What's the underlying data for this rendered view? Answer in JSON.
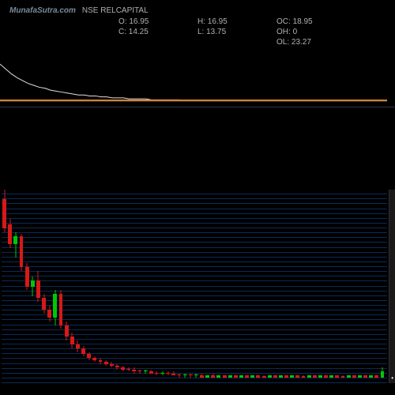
{
  "header": {
    "site": "MunafaSutra.com",
    "ticker": "NSE RELCAPITAL",
    "stats": {
      "o_label": "O:",
      "o_val": "16.95",
      "c_label": "C:",
      "c_val": "14.25",
      "h_label": "H:",
      "h_val": "16.95",
      "l_label": "L:",
      "l_val": "13.75",
      "oc_label": "OC:",
      "oc_val": "18.95",
      "oh_label": "OH:",
      "oh_val": "0",
      "ol_label": "OL:",
      "ol_val": "23.27"
    }
  },
  "colors": {
    "bg": "#000000",
    "grid": "#0a2a5a",
    "text": "#b0b0b0",
    "bull": "#00c800",
    "bear": "#d81818",
    "indicator_line": "#e0e0e0",
    "orange_line": "#ff8000",
    "blue_line": "#0060ff"
  },
  "indicator": {
    "points": [
      40,
      35,
      30,
      26,
      23,
      20,
      18,
      16,
      15,
      13,
      12,
      11,
      10,
      9,
      8,
      8,
      7,
      7,
      6,
      6,
      5,
      5,
      5,
      4,
      4,
      4,
      4,
      3,
      3,
      3,
      3,
      3,
      3,
      2,
      2,
      2,
      2,
      2,
      2,
      2,
      2,
      2,
      2,
      2,
      2,
      2,
      2,
      2,
      2,
      2,
      2,
      2,
      2,
      2,
      2,
      2,
      2,
      2,
      2,
      2,
      2,
      2,
      2,
      2,
      2,
      2,
      2,
      2,
      2,
      2
    ]
  },
  "chart": {
    "ylim": [
      0,
      100
    ],
    "grid_count": 40,
    "candles": [
      {
        "o": 95,
        "h": 100,
        "l": 78,
        "c": 80,
        "type": "bear"
      },
      {
        "o": 82,
        "h": 85,
        "l": 70,
        "c": 72,
        "type": "bear"
      },
      {
        "o": 72,
        "h": 78,
        "l": 65,
        "c": 76,
        "type": "bull"
      },
      {
        "o": 76,
        "h": 77,
        "l": 58,
        "c": 60,
        "type": "bear"
      },
      {
        "o": 60,
        "h": 62,
        "l": 48,
        "c": 50,
        "type": "bear"
      },
      {
        "o": 50,
        "h": 55,
        "l": 45,
        "c": 53,
        "type": "bull"
      },
      {
        "o": 53,
        "h": 58,
        "l": 42,
        "c": 44,
        "type": "bear"
      },
      {
        "o": 44,
        "h": 46,
        "l": 36,
        "c": 38,
        "type": "bear"
      },
      {
        "o": 38,
        "h": 40,
        "l": 32,
        "c": 34,
        "type": "bear"
      },
      {
        "o": 34,
        "h": 48,
        "l": 30,
        "c": 46,
        "type": "bull"
      },
      {
        "o": 46,
        "h": 48,
        "l": 28,
        "c": 30,
        "type": "bear"
      },
      {
        "o": 30,
        "h": 32,
        "l": 22,
        "c": 24,
        "type": "bear"
      },
      {
        "o": 24,
        "h": 26,
        "l": 18,
        "c": 20,
        "type": "bear"
      },
      {
        "o": 20,
        "h": 22,
        "l": 16,
        "c": 18,
        "type": "bear"
      },
      {
        "o": 18,
        "h": 19,
        "l": 14,
        "c": 15,
        "type": "bear"
      },
      {
        "o": 15,
        "h": 16,
        "l": 12,
        "c": 13,
        "type": "bear"
      },
      {
        "o": 13,
        "h": 14,
        "l": 11,
        "c": 12,
        "type": "bear"
      },
      {
        "o": 12,
        "h": 13,
        "l": 10,
        "c": 11,
        "type": "bear"
      },
      {
        "o": 11,
        "h": 12,
        "l": 9,
        "c": 10,
        "type": "bear"
      },
      {
        "o": 10,
        "h": 11,
        "l": 8,
        "c": 9,
        "type": "bear"
      },
      {
        "o": 9,
        "h": 10,
        "l": 7,
        "c": 8,
        "type": "bear"
      },
      {
        "o": 8,
        "h": 9,
        "l": 6,
        "c": 7,
        "type": "bear"
      },
      {
        "o": 7,
        "h": 8,
        "l": 6,
        "c": 7,
        "type": "bear"
      },
      {
        "o": 7,
        "h": 8,
        "l": 5,
        "c": 6,
        "type": "bear"
      },
      {
        "o": 6,
        "h": 7,
        "l": 5,
        "c": 6,
        "type": "bear"
      },
      {
        "o": 6,
        "h": 7,
        "l": 5,
        "c": 6,
        "type": "bull"
      },
      {
        "o": 6,
        "h": 7,
        "l": 5,
        "c": 5,
        "type": "bear"
      },
      {
        "o": 5,
        "h": 6,
        "l": 4,
        "c": 5,
        "type": "bear"
      },
      {
        "o": 5,
        "h": 6,
        "l": 4,
        "c": 5,
        "type": "bull"
      },
      {
        "o": 5,
        "h": 6,
        "l": 4,
        "c": 5,
        "type": "bear"
      },
      {
        "o": 5,
        "h": 6,
        "l": 4,
        "c": 4,
        "type": "bear"
      },
      {
        "o": 4,
        "h": 5,
        "l": 3,
        "c": 4,
        "type": "bear"
      },
      {
        "o": 4,
        "h": 5,
        "l": 3,
        "c": 4,
        "type": "bull"
      },
      {
        "o": 4,
        "h": 5,
        "l": 3,
        "c": 4,
        "type": "bear"
      },
      {
        "o": 4,
        "h": 5,
        "l": 3,
        "c": 4,
        "type": "bull"
      },
      {
        "o": 4,
        "h": 5,
        "l": 3,
        "c": 3,
        "type": "bear"
      },
      {
        "o": 3,
        "h": 4,
        "l": 3,
        "c": 4,
        "type": "bull"
      },
      {
        "o": 4,
        "h": 5,
        "l": 3,
        "c": 3,
        "type": "bear"
      },
      {
        "o": 3,
        "h": 4,
        "l": 3,
        "c": 4,
        "type": "bull"
      },
      {
        "o": 4,
        "h": 4,
        "l": 3,
        "c": 3,
        "type": "bear"
      },
      {
        "o": 3,
        "h": 4,
        "l": 3,
        "c": 4,
        "type": "bull"
      },
      {
        "o": 4,
        "h": 4,
        "l": 3,
        "c": 3,
        "type": "bear"
      },
      {
        "o": 3,
        "h": 4,
        "l": 3,
        "c": 4,
        "type": "bull"
      },
      {
        "o": 4,
        "h": 4,
        "l": 3,
        "c": 3,
        "type": "bear"
      },
      {
        "o": 3,
        "h": 4,
        "l": 3,
        "c": 4,
        "type": "bull"
      },
      {
        "o": 4,
        "h": 4,
        "l": 3,
        "c": 3,
        "type": "bear"
      },
      {
        "o": 3,
        "h": 4,
        "l": 3,
        "c": 3,
        "type": "bear"
      },
      {
        "o": 3,
        "h": 4,
        "l": 3,
        "c": 4,
        "type": "bull"
      },
      {
        "o": 4,
        "h": 4,
        "l": 3,
        "c": 3,
        "type": "bear"
      },
      {
        "o": 3,
        "h": 4,
        "l": 3,
        "c": 4,
        "type": "bull"
      },
      {
        "o": 4,
        "h": 4,
        "l": 3,
        "c": 3,
        "type": "bear"
      },
      {
        "o": 3,
        "h": 4,
        "l": 3,
        "c": 4,
        "type": "bull"
      },
      {
        "o": 4,
        "h": 4,
        "l": 3,
        "c": 3,
        "type": "bear"
      },
      {
        "o": 3,
        "h": 4,
        "l": 3,
        "c": 3,
        "type": "bear"
      },
      {
        "o": 3,
        "h": 4,
        "l": 3,
        "c": 4,
        "type": "bull"
      },
      {
        "o": 4,
        "h": 4,
        "l": 3,
        "c": 3,
        "type": "bear"
      },
      {
        "o": 3,
        "h": 4,
        "l": 3,
        "c": 4,
        "type": "bull"
      },
      {
        "o": 4,
        "h": 4,
        "l": 3,
        "c": 3,
        "type": "bear"
      },
      {
        "o": 3,
        "h": 4,
        "l": 3,
        "c": 4,
        "type": "bull"
      },
      {
        "o": 4,
        "h": 4,
        "l": 3,
        "c": 3,
        "type": "bear"
      },
      {
        "o": 3,
        "h": 4,
        "l": 3,
        "c": 3,
        "type": "bear"
      },
      {
        "o": 3,
        "h": 4,
        "l": 3,
        "c": 4,
        "type": "bull"
      },
      {
        "o": 4,
        "h": 4,
        "l": 3,
        "c": 3,
        "type": "bear"
      },
      {
        "o": 3,
        "h": 4,
        "l": 3,
        "c": 4,
        "type": "bull"
      },
      {
        "o": 4,
        "h": 4,
        "l": 3,
        "c": 3,
        "type": "bear"
      },
      {
        "o": 3,
        "h": 4,
        "l": 3,
        "c": 4,
        "type": "bull"
      },
      {
        "o": 4,
        "h": 4,
        "l": 3,
        "c": 3,
        "type": "bear"
      },
      {
        "o": 3,
        "h": 8,
        "l": 3,
        "c": 6,
        "type": "bull"
      }
    ]
  }
}
